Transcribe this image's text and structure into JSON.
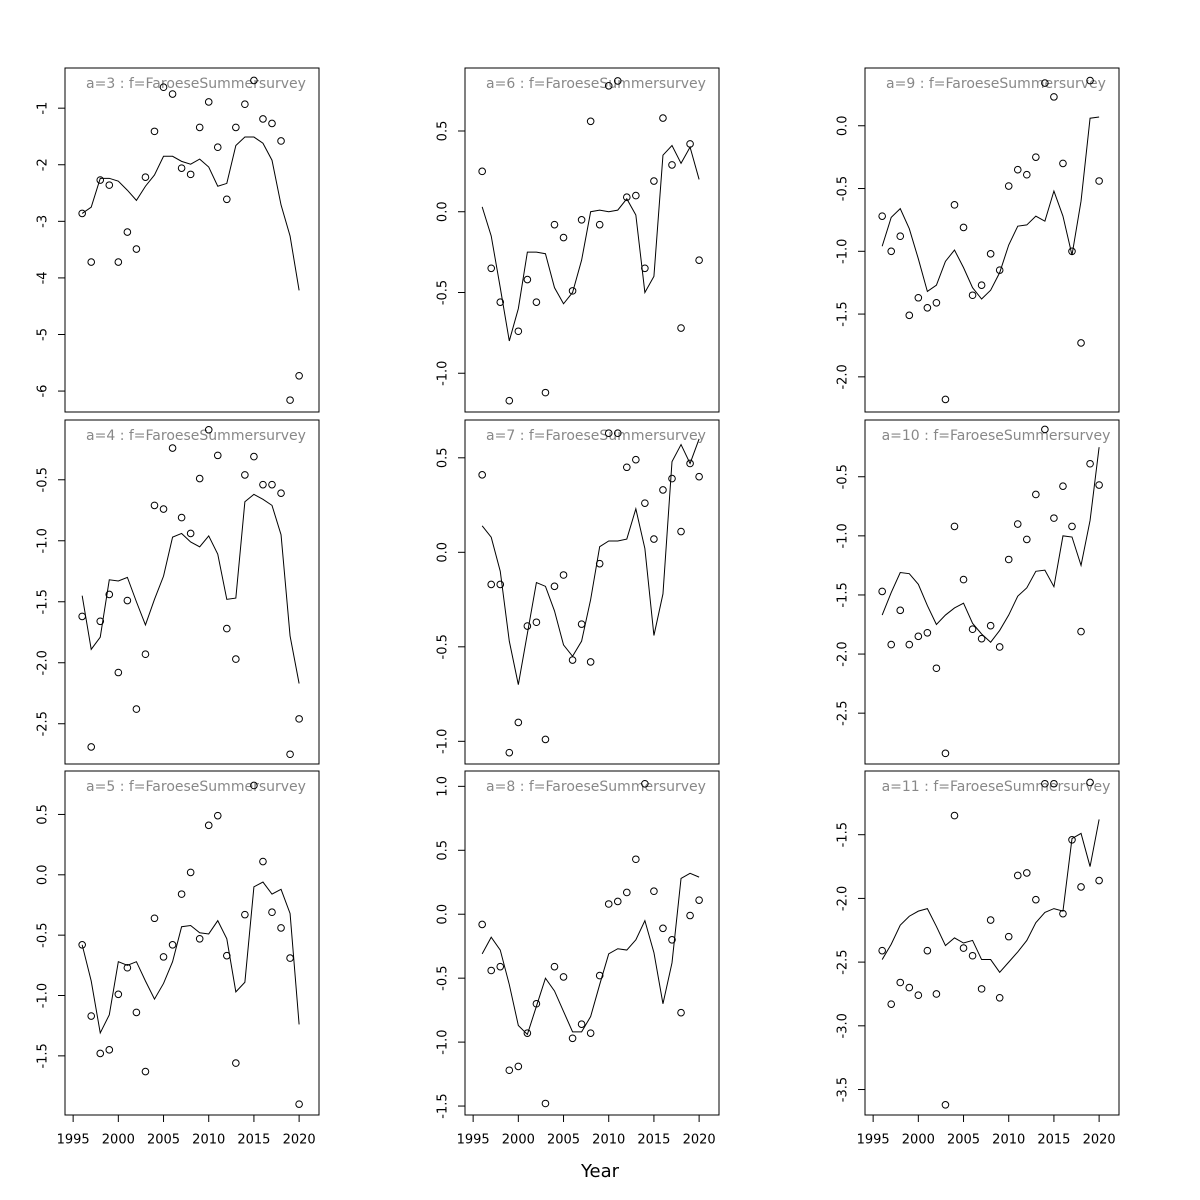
{
  "chart_data": [
    {
      "type": "line",
      "title": "a=3 : f=FaroeseSummersurvey",
      "xlim": [
        1994.1,
        2022.2
      ],
      "ylim": [
        -6.37,
        -0.29
      ],
      "yticks": [
        -1,
        -2,
        -3,
        -4,
        -5,
        -6
      ],
      "x": [
        1996,
        1997,
        1998,
        1999,
        2000,
        2001,
        2002,
        2003,
        2004,
        2005,
        2006,
        2007,
        2008,
        2009,
        2010,
        2011,
        2012,
        2013,
        2014,
        2015,
        2016,
        2017,
        2018,
        2019,
        2020
      ],
      "series": [
        {
          "style": "points",
          "color": "#000000",
          "values": [
            -2.86,
            -3.72,
            -2.27,
            -2.36,
            -3.72,
            -3.19,
            -3.49,
            -2.22,
            -1.41,
            -0.63,
            -0.75,
            -2.06,
            -2.17,
            -1.34,
            -0.89,
            -1.69,
            -2.61,
            -1.34,
            -0.93,
            -0.51,
            -1.19,
            -1.27,
            -1.58,
            -6.16,
            -5.73
          ]
        },
        {
          "style": "line",
          "color": "#000000",
          "values": [
            -2.86,
            -2.75,
            -2.24,
            -2.24,
            -2.29,
            -2.45,
            -2.63,
            -2.38,
            -2.18,
            -1.85,
            -1.85,
            -1.94,
            -1.99,
            -1.9,
            -2.04,
            -2.38,
            -2.33,
            -1.66,
            -1.51,
            -1.51,
            -1.62,
            -1.92,
            -2.71,
            -3.26,
            -4.22
          ]
        }
      ]
    },
    {
      "type": "line",
      "title": "a=6 : f=FaroeseSummersurvey",
      "xlim": [
        1994.1,
        2022.2
      ],
      "ylim": [
        -1.24,
        0.89
      ],
      "yticks": [
        0.5,
        {
          "value": 0,
          "label": "0.0"
        },
        -0.5,
        {
          "value": -1,
          "label": "-1.0"
        }
      ],
      "x": [
        1996,
        1997,
        1998,
        1999,
        2000,
        2001,
        2002,
        2003,
        2004,
        2005,
        2006,
        2007,
        2008,
        2009,
        2010,
        2011,
        2012,
        2013,
        2014,
        2015,
        2016,
        2017,
        2018,
        2019,
        2020
      ],
      "series": [
        {
          "style": "points",
          "color": "#000000",
          "values": [
            0.25,
            -0.35,
            -0.56,
            -1.17,
            -0.74,
            -0.42,
            -0.56,
            -1.12,
            -0.08,
            -0.16,
            -0.49,
            -0.05,
            0.56,
            -0.08,
            0.78,
            0.81,
            0.09,
            0.1,
            -0.35,
            0.19,
            0.58,
            0.29,
            -0.72,
            0.42,
            -0.3
          ]
        },
        {
          "style": "line",
          "color": "#000000",
          "values": [
            0.03,
            -0.15,
            -0.47,
            -0.8,
            -0.6,
            -0.25,
            -0.25,
            -0.26,
            -0.47,
            -0.57,
            -0.5,
            -0.3,
            0.0,
            0.01,
            0.0,
            0.01,
            0.08,
            -0.02,
            -0.5,
            -0.4,
            0.35,
            0.41,
            0.3,
            0.4,
            0.2
          ]
        }
      ]
    },
    {
      "type": "line",
      "title": "a=9 : f=FaroeseSummersurvey",
      "xlim": [
        1994.1,
        2022.2
      ],
      "ylim": [
        -2.28,
        0.46
      ],
      "yticks": [
        {
          "value": 0,
          "label": "0.0"
        },
        -0.5,
        {
          "value": -1,
          "label": "-1.0"
        },
        -1.5,
        {
          "value": -2,
          "label": "-2.0"
        }
      ],
      "x": [
        1996,
        1997,
        1998,
        1999,
        2000,
        2001,
        2002,
        2003,
        2004,
        2005,
        2006,
        2007,
        2008,
        2009,
        2010,
        2011,
        2012,
        2013,
        2014,
        2015,
        2016,
        2017,
        2018,
        2019,
        2020
      ],
      "series": [
        {
          "style": "points",
          "color": "#000000",
          "values": [
            -0.72,
            -1.0,
            -0.88,
            -1.51,
            -1.37,
            -1.45,
            -1.41,
            -2.18,
            -0.63,
            -0.81,
            -1.35,
            -1.27,
            -1.02,
            -1.15,
            -0.48,
            -0.35,
            -0.39,
            -0.25,
            0.34,
            0.23,
            -0.3,
            -1.0,
            -1.73,
            0.36,
            -0.44
          ]
        },
        {
          "style": "line",
          "color": "#000000",
          "values": [
            -0.96,
            -0.73,
            -0.66,
            -0.82,
            -1.06,
            -1.32,
            -1.27,
            -1.08,
            -0.99,
            -1.13,
            -1.29,
            -1.38,
            -1.31,
            -1.17,
            -0.95,
            -0.8,
            -0.79,
            -0.72,
            -0.76,
            -0.52,
            -0.72,
            -1.03,
            -0.6,
            0.06,
            0.07
          ]
        }
      ]
    },
    {
      "type": "line",
      "title": "a=4 : f=FaroeseSummersurvey",
      "xlim": [
        1994.1,
        2022.2
      ],
      "ylim": [
        -2.83,
        -0.01
      ],
      "yticks": [
        -0.5,
        {
          "value": -1,
          "label": "-1.0"
        },
        -1.5,
        {
          "value": -2,
          "label": "-2.0"
        },
        -2.5
      ],
      "x": [
        1996,
        1997,
        1998,
        1999,
        2000,
        2001,
        2002,
        2003,
        2004,
        2005,
        2006,
        2007,
        2008,
        2009,
        2010,
        2011,
        2012,
        2013,
        2014,
        2015,
        2016,
        2017,
        2018,
        2019,
        2020
      ],
      "series": [
        {
          "style": "points",
          "color": "#000000",
          "values": [
            -1.62,
            -2.69,
            -1.66,
            -1.44,
            -2.08,
            -1.49,
            -2.38,
            -1.93,
            -0.71,
            -0.74,
            -0.24,
            -0.81,
            -0.94,
            -0.49,
            -0.09,
            -0.3,
            -1.72,
            -1.97,
            -0.46,
            -0.31,
            -0.54,
            -0.54,
            -0.61,
            -2.75,
            -2.46
          ]
        },
        {
          "style": "line",
          "color": "#000000",
          "values": [
            -1.45,
            -1.89,
            -1.79,
            -1.32,
            -1.33,
            -1.3,
            -1.5,
            -1.69,
            -1.48,
            -1.29,
            -0.97,
            -0.94,
            -1.01,
            -1.05,
            -0.96,
            -1.11,
            -1.48,
            -1.47,
            -0.68,
            -0.62,
            -0.66,
            -0.71,
            -0.95,
            -1.78,
            -2.17
          ]
        }
      ]
    },
    {
      "type": "line",
      "title": "a=7 : f=FaroeseSummersurvey",
      "xlim": [
        1994.1,
        2022.2
      ],
      "ylim": [
        -1.12,
        0.7
      ],
      "yticks": [
        0.5,
        {
          "value": 0,
          "label": "0.0"
        },
        -0.5,
        {
          "value": -1,
          "label": "-1.0"
        }
      ],
      "x": [
        1996,
        1997,
        1998,
        1999,
        2000,
        2001,
        2002,
        2003,
        2004,
        2005,
        2006,
        2007,
        2008,
        2009,
        2010,
        2011,
        2012,
        2013,
        2014,
        2015,
        2016,
        2017,
        2018,
        2019,
        2020
      ],
      "series": [
        {
          "style": "points",
          "color": "#000000",
          "values": [
            0.41,
            -0.17,
            -0.17,
            -1.06,
            -0.9,
            -0.39,
            -0.37,
            -0.99,
            -0.18,
            -0.12,
            -0.57,
            -0.38,
            -0.58,
            -0.06,
            0.63,
            0.63,
            0.45,
            0.49,
            0.26,
            0.07,
            0.33,
            0.39,
            0.11,
            0.47,
            0.4
          ]
        },
        {
          "style": "line",
          "color": "#000000",
          "values": [
            0.14,
            0.08,
            -0.1,
            -0.47,
            -0.7,
            -0.43,
            -0.16,
            -0.18,
            -0.31,
            -0.49,
            -0.55,
            -0.47,
            -0.25,
            0.03,
            0.06,
            0.06,
            0.07,
            0.23,
            0.02,
            -0.44,
            -0.22,
            0.48,
            0.57,
            0.47,
            0.6
          ]
        }
      ]
    },
    {
      "type": "line",
      "title": "a=10 : f=FaroeseSummersurvey",
      "xlim": [
        1994.1,
        2022.2
      ],
      "ylim": [
        -2.93,
        -0.02
      ],
      "yticks": [
        -0.5,
        {
          "value": -1,
          "label": "-1.0"
        },
        -1.5,
        {
          "value": -2,
          "label": "-2.0"
        },
        -2.5
      ],
      "x": [
        1996,
        1997,
        1998,
        1999,
        2000,
        2001,
        2002,
        2003,
        2004,
        2005,
        2006,
        2007,
        2008,
        2009,
        2010,
        2011,
        2012,
        2013,
        2014,
        2015,
        2016,
        2017,
        2018,
        2019,
        2020
      ],
      "series": [
        {
          "style": "points",
          "color": "#000000",
          "values": [
            -1.47,
            -1.92,
            -1.63,
            -1.92,
            -1.85,
            -1.82,
            -2.12,
            -2.84,
            -0.92,
            -1.37,
            -1.79,
            -1.87,
            -1.76,
            -1.94,
            -1.2,
            -0.9,
            -1.03,
            -0.65,
            -0.1,
            -0.85,
            -0.58,
            -0.92,
            -1.81,
            -0.39,
            -0.57
          ]
        },
        {
          "style": "line",
          "color": "#000000",
          "values": [
            -1.67,
            -1.48,
            -1.31,
            -1.32,
            -1.41,
            -1.59,
            -1.75,
            -1.67,
            -1.61,
            -1.57,
            -1.74,
            -1.83,
            -1.9,
            -1.8,
            -1.67,
            -1.51,
            -1.44,
            -1.3,
            -1.29,
            -1.43,
            -1.0,
            -1.01,
            -1.25,
            -0.87,
            -0.25
          ]
        }
      ]
    },
    {
      "type": "line",
      "title": "a=5 : f=FaroeseSummersurvey",
      "xlim": [
        1994.1,
        2022.2
      ],
      "ylim": [
        -1.99,
        0.86
      ],
      "yticks": [
        0.5,
        {
          "value": 0,
          "label": "0.0"
        },
        -0.5,
        {
          "value": -1,
          "label": "-1.0"
        },
        -1.5
      ],
      "xticks": [
        1995,
        2000,
        2005,
        2010,
        2015,
        2020
      ],
      "x": [
        1996,
        1997,
        1998,
        1999,
        2000,
        2001,
        2002,
        2003,
        2004,
        2005,
        2006,
        2007,
        2008,
        2009,
        2010,
        2011,
        2012,
        2013,
        2014,
        2015,
        2016,
        2017,
        2018,
        2019,
        2020
      ],
      "series": [
        {
          "style": "points",
          "color": "#000000",
          "values": [
            -0.58,
            -1.17,
            -1.48,
            -1.45,
            -0.99,
            -0.77,
            -1.14,
            -1.63,
            -0.36,
            -0.68,
            -0.58,
            -0.16,
            0.02,
            -0.53,
            0.41,
            0.49,
            -0.67,
            -1.56,
            -0.33,
            0.74,
            0.11,
            -0.31,
            -0.44,
            -0.69,
            -1.9
          ]
        },
        {
          "style": "line",
          "color": "#000000",
          "values": [
            -0.58,
            -0.88,
            -1.31,
            -1.16,
            -0.72,
            -0.75,
            -0.72,
            -0.88,
            -1.03,
            -0.9,
            -0.72,
            -0.43,
            -0.42,
            -0.48,
            -0.49,
            -0.38,
            -0.53,
            -0.97,
            -0.89,
            -0.1,
            -0.06,
            -0.16,
            -0.12,
            -0.32,
            -1.24
          ]
        }
      ]
    },
    {
      "type": "line",
      "title": "a=8 : f=FaroeseSummersurvey",
      "xlabel": "Year",
      "xlim": [
        1994.1,
        2022.2
      ],
      "ylim": [
        -1.57,
        1.12
      ],
      "yticks": [
        {
          "value": 1,
          "label": "1.0"
        },
        0.5,
        {
          "value": 0,
          "label": "0.0"
        },
        -0.5,
        {
          "value": -1,
          "label": "-1.0"
        },
        -1.5
      ],
      "xticks": [
        1995,
        2000,
        2005,
        2010,
        2015,
        2020
      ],
      "x": [
        1996,
        1997,
        1998,
        1999,
        2000,
        2001,
        2002,
        2003,
        2004,
        2005,
        2006,
        2007,
        2008,
        2009,
        2010,
        2011,
        2012,
        2013,
        2014,
        2015,
        2016,
        2017,
        2018,
        2019,
        2020
      ],
      "series": [
        {
          "style": "points",
          "color": "#000000",
          "values": [
            -0.08,
            -0.44,
            -0.41,
            -1.22,
            -1.19,
            -0.93,
            -0.7,
            -1.48,
            -0.41,
            -0.49,
            -0.97,
            -0.86,
            -0.93,
            -0.48,
            0.08,
            0.1,
            0.17,
            0.43,
            1.02,
            0.18,
            -0.11,
            -0.2,
            -0.77,
            -0.01,
            0.11
          ]
        },
        {
          "style": "line",
          "color": "#000000",
          "values": [
            -0.31,
            -0.18,
            -0.28,
            -0.55,
            -0.87,
            -0.94,
            -0.72,
            -0.5,
            -0.6,
            -0.76,
            -0.92,
            -0.92,
            -0.8,
            -0.55,
            -0.31,
            -0.27,
            -0.28,
            -0.2,
            -0.05,
            -0.3,
            -0.7,
            -0.38,
            0.28,
            0.32,
            0.29
          ]
        }
      ]
    },
    {
      "type": "line",
      "title": "a=11 : f=FaroeseSummersurvey",
      "xlim": [
        1994.1,
        2022.2
      ],
      "ylim": [
        -3.7,
        -1.0
      ],
      "yticks": [
        -1.5,
        {
          "value": -2,
          "label": "-2.0"
        },
        -2.5,
        {
          "value": -3,
          "label": "-3.0"
        },
        -3.5
      ],
      "xticks": [
        1995,
        2000,
        2005,
        2010,
        2015,
        2020
      ],
      "x": [
        1996,
        1997,
        1998,
        1999,
        2000,
        2001,
        2002,
        2003,
        2004,
        2005,
        2006,
        2007,
        2008,
        2009,
        2010,
        2011,
        2012,
        2013,
        2014,
        2015,
        2016,
        2017,
        2018,
        2019,
        2020
      ],
      "series": [
        {
          "style": "points",
          "color": "#000000",
          "values": [
            -2.41,
            -2.83,
            -2.66,
            -2.7,
            -2.76,
            -2.41,
            -2.75,
            -3.62,
            -1.35,
            -2.39,
            -2.45,
            -2.71,
            -2.17,
            -2.78,
            -2.3,
            -1.82,
            -1.8,
            -2.01,
            -1.1,
            -1.1,
            -2.12,
            -1.54,
            -1.91,
            -1.09,
            -1.86
          ]
        },
        {
          "style": "line",
          "color": "#000000",
          "values": [
            -2.48,
            -2.36,
            -2.21,
            -2.14,
            -2.1,
            -2.08,
            -2.22,
            -2.37,
            -2.31,
            -2.35,
            -2.33,
            -2.48,
            -2.48,
            -2.58,
            -2.5,
            -2.42,
            -2.33,
            -2.19,
            -2.11,
            -2.08,
            -2.1,
            -1.53,
            -1.49,
            -1.75,
            -1.38
          ]
        }
      ]
    }
  ]
}
